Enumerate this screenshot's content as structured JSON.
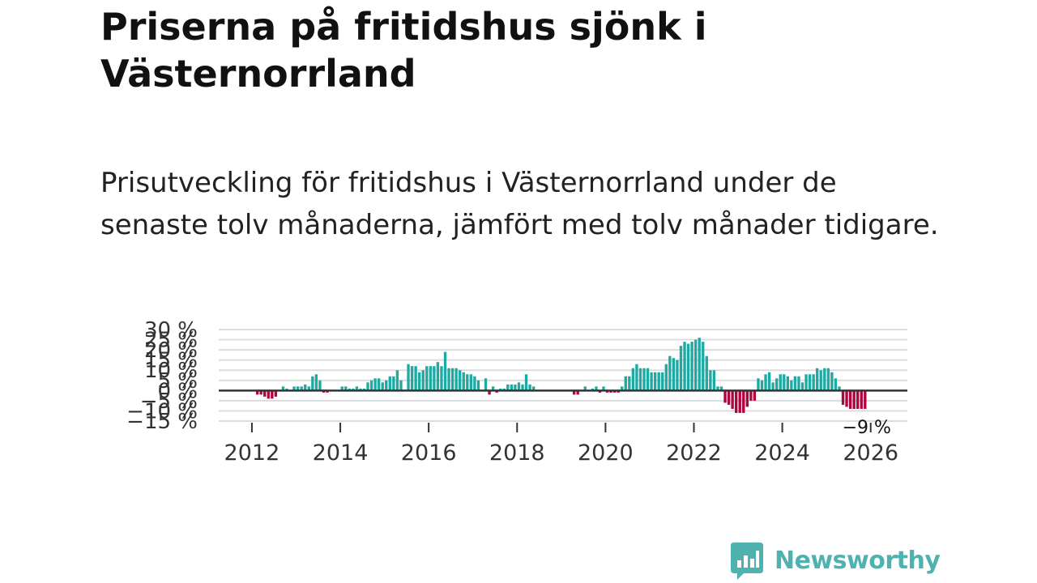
{
  "header": {
    "title": "Priserna på fritidshus sjönk i Västernorrland",
    "subtitle": "Prisutveckling för fritidshus i Västernorrland under de senaste tolv månaderna, jämfört med tolv månader tidigare."
  },
  "brand": {
    "name": "Newsworthy",
    "color": "#4eb3b0"
  },
  "colors": {
    "positive": "#1fa9a3",
    "negative": "#b0043c",
    "gridline": "#dcdcdc",
    "zero_line": "#333333",
    "tick_text": "#333333"
  },
  "chart_data": {
    "type": "bar",
    "title": "",
    "xlabel": "",
    "ylabel": "",
    "ylim": [
      -15,
      30
    ],
    "y_tick_values": [
      -15,
      -10,
      -5,
      0,
      5,
      10,
      15,
      20,
      25,
      30
    ],
    "y_tick_labels": [
      "−15 %",
      "−10 %",
      "−5 %",
      "0 %",
      "5 %",
      "10 %",
      "15 %",
      "20 %",
      "25 %",
      "30 %"
    ],
    "x_tick_values": [
      2012,
      2014,
      2016,
      2018,
      2020,
      2022,
      2024,
      2026
    ],
    "x_tick_labels": [
      "2012",
      "2014",
      "2016",
      "2018",
      "2020",
      "2022",
      "2024",
      "2026"
    ],
    "grid": true,
    "x_start": "2011-09",
    "x_step": "1 month",
    "values": [
      0,
      0,
      0,
      0,
      0,
      -2,
      -2,
      -3,
      -4,
      -4,
      -3,
      0,
      2,
      1,
      0,
      2,
      2,
      2,
      3,
      2,
      7,
      8,
      5,
      -1,
      -1,
      0,
      0,
      0,
      2,
      2,
      1,
      1,
      2,
      1,
      1,
      4,
      5,
      6,
      6,
      4,
      5,
      7,
      7,
      10,
      5,
      0,
      13,
      12,
      12,
      9,
      10,
      12,
      12,
      12,
      14,
      12,
      19,
      11,
      11,
      11,
      10,
      9,
      8,
      8,
      7,
      5,
      0,
      6,
      -2,
      2,
      -1,
      1,
      1,
      3,
      3,
      3,
      4,
      3,
      8,
      3,
      2,
      0,
      0,
      0,
      0,
      0,
      0,
      0,
      0,
      0,
      0,
      -2,
      -2,
      0,
      2,
      0,
      1,
      2,
      -1,
      2,
      -1,
      -1,
      -1,
      -1,
      2,
      7,
      7,
      11,
      13,
      11,
      11,
      11,
      9,
      9,
      9,
      9,
      13,
      17,
      16,
      15,
      22,
      24,
      23,
      24,
      25,
      26,
      24,
      17,
      10,
      10,
      2,
      2,
      -6,
      -7,
      -9,
      -11,
      -11,
      -11,
      -8,
      -5,
      -5,
      6,
      5,
      8,
      9,
      4,
      6,
      8,
      8,
      7,
      5,
      7,
      7,
      4,
      8,
      8,
      8,
      11,
      10,
      11,
      11,
      9,
      6,
      2,
      -7,
      -8,
      -9,
      -9,
      -9,
      -9,
      -9
    ],
    "last_value_label": "−9 %"
  }
}
